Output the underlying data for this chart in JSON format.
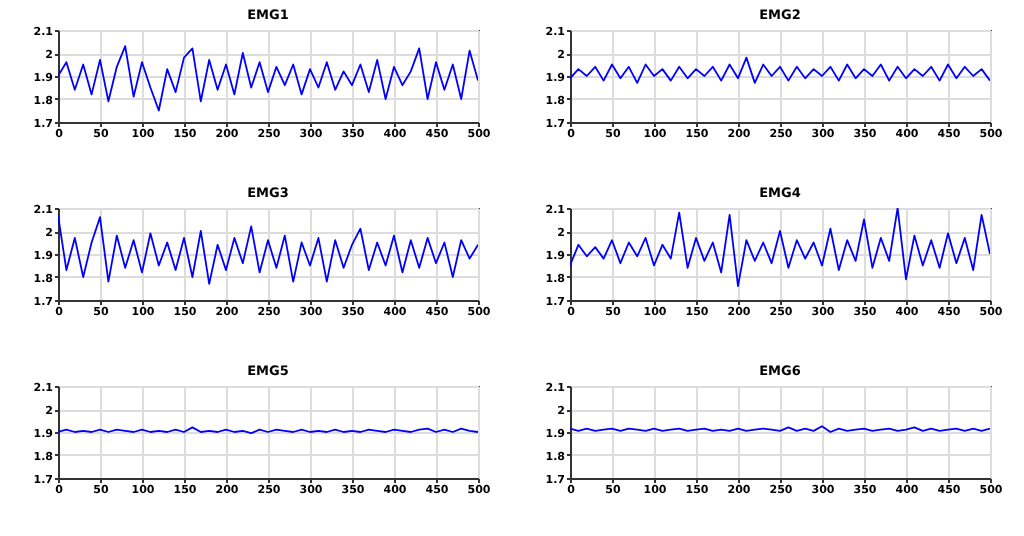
{
  "chart_data": [
    {
      "type": "line",
      "title": "EMG1",
      "x": [
        0,
        10,
        20,
        30,
        40,
        50,
        60,
        70,
        80,
        90,
        100,
        110,
        120,
        130,
        140,
        150,
        160,
        170,
        180,
        190,
        200,
        210,
        220,
        230,
        240,
        250,
        260,
        270,
        280,
        290,
        300,
        310,
        320,
        330,
        340,
        350,
        360,
        370,
        380,
        390,
        400,
        410,
        420,
        430,
        440,
        450,
        460,
        470,
        480,
        490,
        500
      ],
      "series": [
        {
          "color": "#0000ff",
          "values": [
            1.9,
            1.96,
            1.84,
            1.95,
            1.82,
            1.97,
            1.79,
            1.94,
            2.03,
            1.81,
            1.96,
            1.85,
            1.75,
            1.93,
            1.83,
            1.98,
            2.02,
            1.79,
            1.97,
            1.84,
            1.95,
            1.82,
            2.0,
            1.85,
            1.96,
            1.83,
            1.94,
            1.86,
            1.95,
            1.82,
            1.93,
            1.85,
            1.96,
            1.84,
            1.92,
            1.86,
            1.95,
            1.83,
            1.97,
            1.8,
            1.94,
            1.86,
            1.92,
            2.02,
            1.8,
            1.96,
            1.84,
            1.95,
            1.8,
            2.01,
            1.88
          ]
        }
      ],
      "xlim": [
        0,
        500
      ],
      "xticks": [
        0,
        50,
        100,
        150,
        200,
        250,
        300,
        350,
        400,
        450,
        500
      ],
      "ylim": [
        1.7,
        2.1
      ],
      "yticks": [
        1.7,
        1.8,
        1.9,
        2,
        2.1
      ],
      "grid": true
    },
    {
      "type": "line",
      "title": "EMG2",
      "x": [
        0,
        10,
        20,
        30,
        40,
        50,
        60,
        70,
        80,
        90,
        100,
        110,
        120,
        130,
        140,
        150,
        160,
        170,
        180,
        190,
        200,
        210,
        220,
        230,
        240,
        250,
        260,
        270,
        280,
        290,
        300,
        310,
        320,
        330,
        340,
        350,
        360,
        370,
        380,
        390,
        400,
        410,
        420,
        430,
        440,
        450,
        460,
        470,
        480,
        490,
        500
      ],
      "series": [
        {
          "color": "#0000ff",
          "values": [
            1.89,
            1.93,
            1.9,
            1.94,
            1.88,
            1.95,
            1.89,
            1.94,
            1.87,
            1.95,
            1.9,
            1.93,
            1.88,
            1.94,
            1.89,
            1.93,
            1.9,
            1.94,
            1.88,
            1.95,
            1.89,
            1.98,
            1.87,
            1.95,
            1.9,
            1.94,
            1.88,
            1.94,
            1.89,
            1.93,
            1.9,
            1.94,
            1.88,
            1.95,
            1.89,
            1.93,
            1.9,
            1.95,
            1.88,
            1.94,
            1.89,
            1.93,
            1.9,
            1.94,
            1.88,
            1.95,
            1.89,
            1.94,
            1.9,
            1.93,
            1.88
          ]
        }
      ],
      "xlim": [
        0,
        500
      ],
      "xticks": [
        0,
        50,
        100,
        150,
        200,
        250,
        300,
        350,
        400,
        450,
        500
      ],
      "ylim": [
        1.7,
        2.1
      ],
      "yticks": [
        1.7,
        1.8,
        1.9,
        2,
        2.1
      ],
      "grid": true
    },
    {
      "type": "line",
      "title": "EMG3",
      "x": [
        0,
        10,
        20,
        30,
        40,
        50,
        60,
        70,
        80,
        90,
        100,
        110,
        120,
        130,
        140,
        150,
        160,
        170,
        180,
        190,
        200,
        210,
        220,
        230,
        240,
        250,
        260,
        270,
        280,
        290,
        300,
        310,
        320,
        330,
        340,
        350,
        360,
        370,
        380,
        390,
        400,
        410,
        420,
        430,
        440,
        450,
        460,
        470,
        480,
        490,
        500
      ],
      "series": [
        {
          "color": "#0000ff",
          "values": [
            2.07,
            1.83,
            1.97,
            1.8,
            1.95,
            2.06,
            1.78,
            1.98,
            1.84,
            1.96,
            1.82,
            1.99,
            1.85,
            1.95,
            1.83,
            1.97,
            1.8,
            2.0,
            1.77,
            1.94,
            1.83,
            1.97,
            1.86,
            2.02,
            1.82,
            1.96,
            1.84,
            1.98,
            1.78,
            1.95,
            1.85,
            1.97,
            1.78,
            1.96,
            1.84,
            1.94,
            2.01,
            1.83,
            1.95,
            1.85,
            1.98,
            1.82,
            1.96,
            1.84,
            1.97,
            1.86,
            1.95,
            1.8,
            1.96,
            1.88,
            1.94
          ]
        }
      ],
      "xlim": [
        0,
        500
      ],
      "xticks": [
        0,
        50,
        100,
        150,
        200,
        250,
        300,
        350,
        400,
        450,
        500
      ],
      "ylim": [
        1.7,
        2.1
      ],
      "yticks": [
        1.7,
        1.8,
        1.9,
        2,
        2.1
      ],
      "grid": true
    },
    {
      "type": "line",
      "title": "EMG4",
      "x": [
        0,
        10,
        20,
        30,
        40,
        50,
        60,
        70,
        80,
        90,
        100,
        110,
        120,
        130,
        140,
        150,
        160,
        170,
        180,
        190,
        200,
        210,
        220,
        230,
        240,
        250,
        260,
        270,
        280,
        290,
        300,
        310,
        320,
        330,
        340,
        350,
        360,
        370,
        380,
        390,
        400,
        410,
        420,
        430,
        440,
        450,
        460,
        470,
        480,
        490,
        500
      ],
      "series": [
        {
          "color": "#0000ff",
          "values": [
            1.85,
            1.94,
            1.89,
            1.93,
            1.88,
            1.96,
            1.86,
            1.95,
            1.89,
            1.97,
            1.85,
            1.94,
            1.88,
            2.08,
            1.84,
            1.97,
            1.87,
            1.95,
            1.82,
            2.07,
            1.76,
            1.96,
            1.87,
            1.95,
            1.86,
            2.0,
            1.84,
            1.96,
            1.88,
            1.95,
            1.85,
            2.01,
            1.83,
            1.96,
            1.87,
            2.05,
            1.84,
            1.97,
            1.87,
            2.1,
            1.79,
            1.98,
            1.85,
            1.96,
            1.84,
            1.99,
            1.86,
            1.97,
            1.83,
            2.07,
            1.9
          ]
        }
      ],
      "xlim": [
        0,
        500
      ],
      "xticks": [
        0,
        50,
        100,
        150,
        200,
        250,
        300,
        350,
        400,
        450,
        500
      ],
      "ylim": [
        1.7,
        2.1
      ],
      "yticks": [
        1.7,
        1.8,
        1.9,
        2,
        2.1
      ],
      "grid": true
    },
    {
      "type": "line",
      "title": "EMG5",
      "x": [
        0,
        10,
        20,
        30,
        40,
        50,
        60,
        70,
        80,
        90,
        100,
        110,
        120,
        130,
        140,
        150,
        160,
        170,
        180,
        190,
        200,
        210,
        220,
        230,
        240,
        250,
        260,
        270,
        280,
        290,
        300,
        310,
        320,
        330,
        340,
        350,
        360,
        370,
        380,
        390,
        400,
        410,
        420,
        430,
        440,
        450,
        460,
        470,
        480,
        490,
        500
      ],
      "series": [
        {
          "color": "#0000ff",
          "values": [
            1.9,
            1.91,
            1.9,
            1.905,
            1.9,
            1.91,
            1.9,
            1.91,
            1.905,
            1.9,
            1.91,
            1.9,
            1.905,
            1.9,
            1.91,
            1.9,
            1.92,
            1.9,
            1.905,
            1.9,
            1.91,
            1.9,
            1.905,
            1.895,
            1.91,
            1.9,
            1.91,
            1.905,
            1.9,
            1.91,
            1.9,
            1.905,
            1.9,
            1.91,
            1.9,
            1.905,
            1.9,
            1.91,
            1.905,
            1.9,
            1.91,
            1.905,
            1.9,
            1.91,
            1.915,
            1.9,
            1.91,
            1.9,
            1.915,
            1.905,
            1.9
          ]
        }
      ],
      "xlim": [
        0,
        500
      ],
      "xticks": [
        0,
        50,
        100,
        150,
        200,
        250,
        300,
        350,
        400,
        450,
        500
      ],
      "ylim": [
        1.7,
        2.1
      ],
      "yticks": [
        1.7,
        1.8,
        1.9,
        2,
        2.1
      ],
      "grid": true
    },
    {
      "type": "line",
      "title": "EMG6",
      "x": [
        0,
        10,
        20,
        30,
        40,
        50,
        60,
        70,
        80,
        90,
        100,
        110,
        120,
        130,
        140,
        150,
        160,
        170,
        180,
        190,
        200,
        210,
        220,
        230,
        240,
        250,
        260,
        270,
        280,
        290,
        300,
        310,
        320,
        330,
        340,
        350,
        360,
        370,
        380,
        390,
        400,
        410,
        420,
        430,
        440,
        450,
        460,
        470,
        480,
        490,
        500
      ],
      "series": [
        {
          "color": "#0000ff",
          "values": [
            1.915,
            1.905,
            1.915,
            1.905,
            1.91,
            1.915,
            1.905,
            1.915,
            1.91,
            1.905,
            1.915,
            1.905,
            1.91,
            1.915,
            1.905,
            1.91,
            1.915,
            1.905,
            1.91,
            1.905,
            1.915,
            1.905,
            1.91,
            1.915,
            1.91,
            1.905,
            1.92,
            1.905,
            1.915,
            1.905,
            1.925,
            1.9,
            1.915,
            1.905,
            1.91,
            1.915,
            1.905,
            1.91,
            1.915,
            1.905,
            1.91,
            1.92,
            1.905,
            1.915,
            1.905,
            1.91,
            1.915,
            1.905,
            1.915,
            1.905,
            1.915
          ]
        }
      ],
      "xlim": [
        0,
        500
      ],
      "xticks": [
        0,
        50,
        100,
        150,
        200,
        250,
        300,
        350,
        400,
        450,
        500
      ],
      "ylim": [
        1.7,
        2.1
      ],
      "yticks": [
        1.7,
        1.8,
        1.9,
        2,
        2.1
      ],
      "grid": true
    }
  ]
}
